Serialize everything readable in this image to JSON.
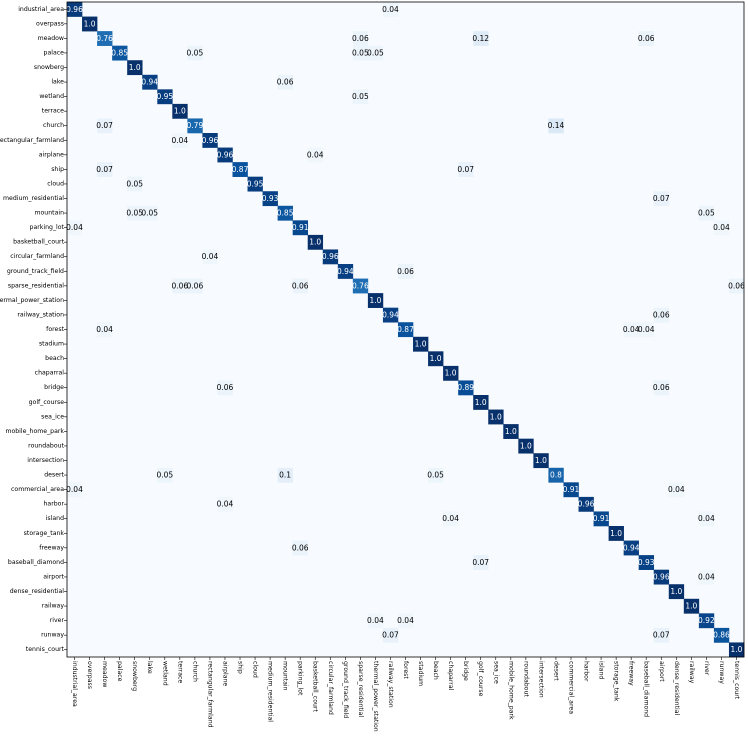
{
  "chart_data": {
    "type": "heatmap",
    "title": "",
    "xlabel": "",
    "ylabel": "",
    "colormap": "Blues",
    "background_color": "#f7fbff",
    "value_range": [
      0,
      1
    ],
    "categories": [
      "industrial_area",
      "overpass",
      "meadow",
      "palace",
      "snowberg",
      "lake",
      "wetland",
      "terrace",
      "church",
      "rectangular_farmland",
      "airplane",
      "ship",
      "cloud",
      "medium_residential",
      "mountain",
      "parking_lot",
      "basketball_court",
      "circular_farmland",
      "ground_track_field",
      "sparse_residential",
      "thermal_power_station",
      "railway_station",
      "forest",
      "stadium",
      "beach",
      "chaparral",
      "bridge",
      "golf_course",
      "sea_ice",
      "mobile_home_park",
      "roundabout",
      "intersection",
      "desert",
      "commercial_area",
      "harbor",
      "island",
      "storage_tank",
      "freeway",
      "baseball_diamond",
      "airport",
      "dense_residential",
      "railway",
      "river",
      "runway",
      "tennis_court"
    ],
    "cells": [
      {
        "row": 0,
        "col": 0,
        "value": 0.96,
        "label": "0.96"
      },
      {
        "row": 0,
        "col": 21,
        "value": 0.04,
        "label": "0.04"
      },
      {
        "row": 1,
        "col": 1,
        "value": 1.0,
        "label": "1.0"
      },
      {
        "row": 2,
        "col": 2,
        "value": 0.76,
        "label": "0.76"
      },
      {
        "row": 2,
        "col": 19,
        "value": 0.06,
        "label": "0.06"
      },
      {
        "row": 2,
        "col": 27,
        "value": 0.12,
        "label": "0.12"
      },
      {
        "row": 2,
        "col": 38,
        "value": 0.06,
        "label": "0.06"
      },
      {
        "row": 3,
        "col": 3,
        "value": 0.85,
        "label": "0.85"
      },
      {
        "row": 3,
        "col": 8,
        "value": 0.05,
        "label": "0.05"
      },
      {
        "row": 3,
        "col": 19,
        "value": 0.05,
        "label": "0.05"
      },
      {
        "row": 3,
        "col": 20,
        "value": 0.05,
        "label": "0.05"
      },
      {
        "row": 4,
        "col": 4,
        "value": 1.0,
        "label": "1.0"
      },
      {
        "row": 5,
        "col": 5,
        "value": 0.94,
        "label": "0.94"
      },
      {
        "row": 5,
        "col": 14,
        "value": 0.06,
        "label": "0.06"
      },
      {
        "row": 6,
        "col": 6,
        "value": 0.95,
        "label": "0.95"
      },
      {
        "row": 6,
        "col": 19,
        "value": 0.05,
        "label": "0.05"
      },
      {
        "row": 7,
        "col": 7,
        "value": 1.0,
        "label": "1.0"
      },
      {
        "row": 8,
        "col": 2,
        "value": 0.07,
        "label": "0.07"
      },
      {
        "row": 8,
        "col": 8,
        "value": 0.79,
        "label": "0.79"
      },
      {
        "row": 8,
        "col": 32,
        "value": 0.14,
        "label": "0.14"
      },
      {
        "row": 9,
        "col": 7,
        "value": 0.04,
        "label": "0.04"
      },
      {
        "row": 9,
        "col": 9,
        "value": 0.96,
        "label": "0.96"
      },
      {
        "row": 10,
        "col": 10,
        "value": 0.96,
        "label": "0.96"
      },
      {
        "row": 10,
        "col": 16,
        "value": 0.04,
        "label": "0.04"
      },
      {
        "row": 11,
        "col": 2,
        "value": 0.07,
        "label": "0.07"
      },
      {
        "row": 11,
        "col": 11,
        "value": 0.87,
        "label": "0.87"
      },
      {
        "row": 11,
        "col": 26,
        "value": 0.07,
        "label": "0.07"
      },
      {
        "row": 12,
        "col": 4,
        "value": 0.05,
        "label": "0.05"
      },
      {
        "row": 12,
        "col": 12,
        "value": 0.95,
        "label": "0.95"
      },
      {
        "row": 13,
        "col": 13,
        "value": 0.93,
        "label": "0.93"
      },
      {
        "row": 13,
        "col": 39,
        "value": 0.07,
        "label": "0.07"
      },
      {
        "row": 14,
        "col": 4,
        "value": 0.05,
        "label": "0.05"
      },
      {
        "row": 14,
        "col": 5,
        "value": 0.05,
        "label": "0.05"
      },
      {
        "row": 14,
        "col": 14,
        "value": 0.85,
        "label": "0.85"
      },
      {
        "row": 14,
        "col": 42,
        "value": 0.05,
        "label": "0.05"
      },
      {
        "row": 15,
        "col": 0,
        "value": 0.04,
        "label": "0.04"
      },
      {
        "row": 15,
        "col": 15,
        "value": 0.91,
        "label": "0.91"
      },
      {
        "row": 15,
        "col": 43,
        "value": 0.04,
        "label": "0.04"
      },
      {
        "row": 16,
        "col": 16,
        "value": 1.0,
        "label": "1.0"
      },
      {
        "row": 17,
        "col": 9,
        "value": 0.04,
        "label": "0.04"
      },
      {
        "row": 17,
        "col": 17,
        "value": 0.96,
        "label": "0.96"
      },
      {
        "row": 18,
        "col": 18,
        "value": 0.94,
        "label": "0.94"
      },
      {
        "row": 18,
        "col": 22,
        "value": 0.06,
        "label": "0.06"
      },
      {
        "row": 19,
        "col": 7,
        "value": 0.06,
        "label": "0.06"
      },
      {
        "row": 19,
        "col": 8,
        "value": 0.06,
        "label": "0.06"
      },
      {
        "row": 19,
        "col": 15,
        "value": 0.06,
        "label": "0.06"
      },
      {
        "row": 19,
        "col": 19,
        "value": 0.76,
        "label": "0.76"
      },
      {
        "row": 19,
        "col": 44,
        "value": 0.06,
        "label": "0.06"
      },
      {
        "row": 20,
        "col": 20,
        "value": 1.0,
        "label": "1.0"
      },
      {
        "row": 21,
        "col": 21,
        "value": 0.94,
        "label": "0.94"
      },
      {
        "row": 21,
        "col": 39,
        "value": 0.06,
        "label": "0.06"
      },
      {
        "row": 22,
        "col": 2,
        "value": 0.04,
        "label": "0.04"
      },
      {
        "row": 22,
        "col": 22,
        "value": 0.87,
        "label": "0.87"
      },
      {
        "row": 22,
        "col": 37,
        "value": 0.04,
        "label": "0.04"
      },
      {
        "row": 22,
        "col": 38,
        "value": 0.04,
        "label": "0.04"
      },
      {
        "row": 23,
        "col": 23,
        "value": 1.0,
        "label": "1.0"
      },
      {
        "row": 24,
        "col": 24,
        "value": 1.0,
        "label": "1.0"
      },
      {
        "row": 25,
        "col": 25,
        "value": 1.0,
        "label": "1.0"
      },
      {
        "row": 26,
        "col": 10,
        "value": 0.06,
        "label": "0.06"
      },
      {
        "row": 26,
        "col": 26,
        "value": 0.89,
        "label": "0.89"
      },
      {
        "row": 26,
        "col": 39,
        "value": 0.06,
        "label": "0.06"
      },
      {
        "row": 27,
        "col": 27,
        "value": 1.0,
        "label": "1.0"
      },
      {
        "row": 28,
        "col": 28,
        "value": 1.0,
        "label": "1.0"
      },
      {
        "row": 29,
        "col": 29,
        "value": 1.0,
        "label": "1.0"
      },
      {
        "row": 30,
        "col": 30,
        "value": 1.0,
        "label": "1.0"
      },
      {
        "row": 31,
        "col": 31,
        "value": 1.0,
        "label": "1.0"
      },
      {
        "row": 32,
        "col": 6,
        "value": 0.05,
        "label": "0.05"
      },
      {
        "row": 32,
        "col": 14,
        "value": 0.1,
        "label": "0.1"
      },
      {
        "row": 32,
        "col": 24,
        "value": 0.05,
        "label": "0.05"
      },
      {
        "row": 32,
        "col": 32,
        "value": 0.8,
        "label": "0.8"
      },
      {
        "row": 33,
        "col": 0,
        "value": 0.04,
        "label": "0.04"
      },
      {
        "row": 33,
        "col": 33,
        "value": 0.91,
        "label": "0.91"
      },
      {
        "row": 33,
        "col": 40,
        "value": 0.04,
        "label": "0.04"
      },
      {
        "row": 34,
        "col": 10,
        "value": 0.04,
        "label": "0.04"
      },
      {
        "row": 34,
        "col": 34,
        "value": 0.96,
        "label": "0.96"
      },
      {
        "row": 35,
        "col": 25,
        "value": 0.04,
        "label": "0.04"
      },
      {
        "row": 35,
        "col": 35,
        "value": 0.91,
        "label": "0.91"
      },
      {
        "row": 35,
        "col": 42,
        "value": 0.04,
        "label": "0.04"
      },
      {
        "row": 36,
        "col": 36,
        "value": 1.0,
        "label": "1.0"
      },
      {
        "row": 37,
        "col": 15,
        "value": 0.06,
        "label": "0.06"
      },
      {
        "row": 37,
        "col": 37,
        "value": 0.94,
        "label": "0.94"
      },
      {
        "row": 38,
        "col": 27,
        "value": 0.07,
        "label": "0.07"
      },
      {
        "row": 38,
        "col": 38,
        "value": 0.93,
        "label": "0.93"
      },
      {
        "row": 39,
        "col": 39,
        "value": 0.96,
        "label": "0.96"
      },
      {
        "row": 39,
        "col": 42,
        "value": 0.04,
        "label": "0.04"
      },
      {
        "row": 40,
        "col": 40,
        "value": 1.0,
        "label": "1.0"
      },
      {
        "row": 41,
        "col": 41,
        "value": 1.0,
        "label": "1.0"
      },
      {
        "row": 42,
        "col": 20,
        "value": 0.04,
        "label": "0.04"
      },
      {
        "row": 42,
        "col": 22,
        "value": 0.04,
        "label": "0.04"
      },
      {
        "row": 42,
        "col": 42,
        "value": 0.92,
        "label": "0.92"
      },
      {
        "row": 43,
        "col": 21,
        "value": 0.07,
        "label": "0.07"
      },
      {
        "row": 43,
        "col": 39,
        "value": 0.07,
        "label": "0.07"
      },
      {
        "row": 43,
        "col": 43,
        "value": 0.86,
        "label": "0.86"
      },
      {
        "row": 44,
        "col": 44,
        "value": 1.0,
        "label": "1.0"
      }
    ]
  }
}
